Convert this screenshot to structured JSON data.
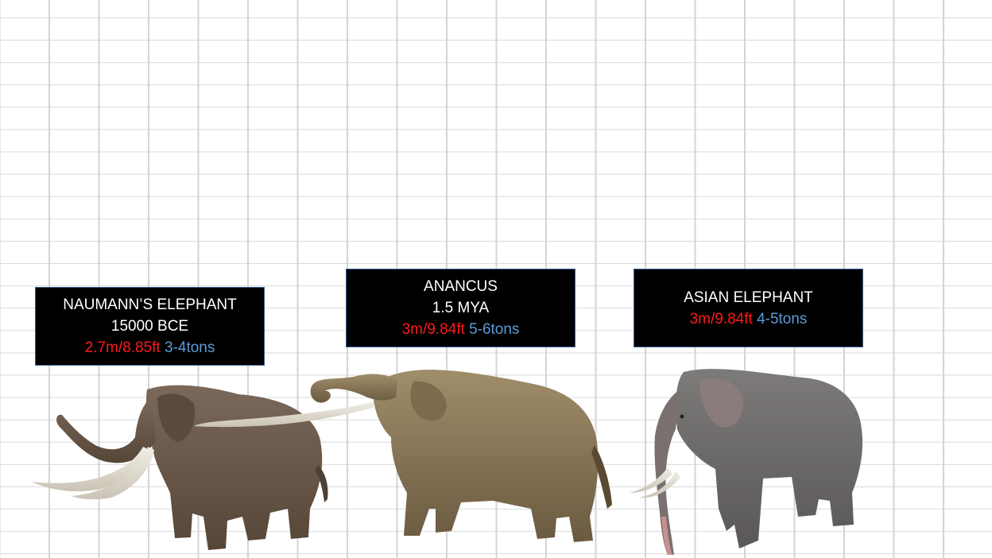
{
  "species": [
    {
      "key": "naumann",
      "name": "NAUMANN’S ELEPHANT",
      "era": "15000 BCE",
      "height": "2.7m/8.85ft",
      "weight": "3-4tons",
      "body_color": "#6e5c4e"
    },
    {
      "key": "anancus",
      "name": "ANANCUS",
      "era": "1.5 MYA",
      "height": "3m/9.84ft",
      "weight": "5-6tons",
      "body_color": "#8c7a5c"
    },
    {
      "key": "asian",
      "name": "ASIAN ELEPHANT",
      "height": "3m/9.84ft",
      "weight": "4-5tons",
      "body_color": "#6f6c6c"
    }
  ],
  "colors": {
    "height_text": "#ff1a1a",
    "weight_text": "#5b9bd5",
    "label_background": "#000000",
    "grid_line": "#d4d4d4"
  }
}
